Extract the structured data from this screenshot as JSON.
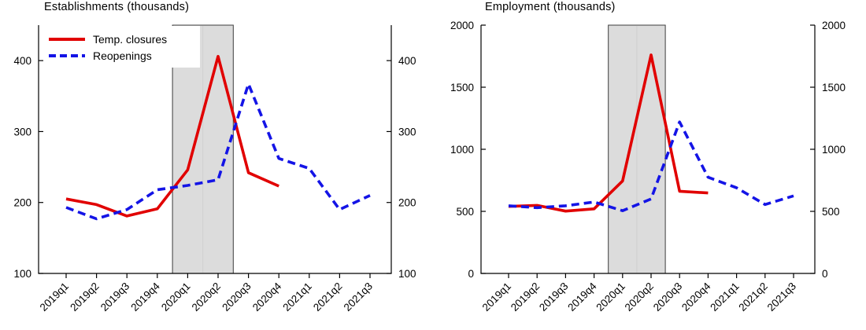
{
  "chart_data": [
    {
      "type": "line",
      "title": "Establishments (thousands)",
      "categories": [
        "2019q1",
        "2019q2",
        "2019q3",
        "2019q4",
        "2020q1",
        "2020q2",
        "2020q3",
        "2020q4",
        "2021q1",
        "2021q2",
        "2021q3"
      ],
      "ylim": [
        100,
        450
      ],
      "yticks": [
        100,
        200,
        300,
        400
      ],
      "grid": false,
      "series": [
        {
          "name": "Temp. closures",
          "color": "#e10000",
          "dash": "solid",
          "values": [
            205,
            197,
            181,
            191,
            246,
            406,
            242,
            223,
            null,
            null,
            null
          ]
        },
        {
          "name": "Reopenings",
          "color": "#1414e6",
          "dash": "dashed",
          "values": [
            193,
            177,
            190,
            218,
            224,
            232,
            367,
            262,
            248,
            190,
            210
          ]
        }
      ],
      "shaded_region": {
        "from": "2020q1",
        "to": "2020q2",
        "fill": "#dcdcdc",
        "edge": "#3c3c3c"
      },
      "legend": {
        "visible": true,
        "position": "top-left"
      }
    },
    {
      "type": "line",
      "title": "Employment (thousands)",
      "categories": [
        "2019q1",
        "2019q2",
        "2019q3",
        "2019q4",
        "2020q1",
        "2020q2",
        "2020q3",
        "2020q4",
        "2021q1",
        "2021q2",
        "2021q3"
      ],
      "ylim": [
        0,
        2000
      ],
      "yticks": [
        0,
        500,
        1000,
        1500,
        2000
      ],
      "grid": false,
      "series": [
        {
          "name": "Temp. closures",
          "color": "#e10000",
          "dash": "solid",
          "values": [
            540,
            548,
            502,
            520,
            745,
            1760,
            662,
            648,
            null,
            null,
            null
          ]
        },
        {
          "name": "Reopenings",
          "color": "#1414e6",
          "dash": "dashed",
          "values": [
            545,
            530,
            545,
            575,
            505,
            600,
            1220,
            775,
            690,
            555,
            625
          ]
        }
      ],
      "shaded_region": {
        "from": "2020q1",
        "to": "2020q2",
        "fill": "#dcdcdc",
        "edge": "#3c3c3c"
      },
      "legend": {
        "visible": false
      }
    }
  ]
}
